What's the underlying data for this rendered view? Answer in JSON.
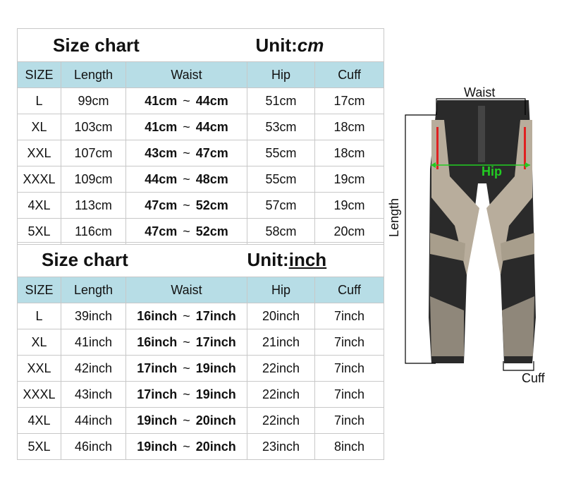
{
  "cm_chart": {
    "title": "Size chart",
    "unit_label": "Unit:",
    "unit": "cm",
    "headers": [
      "SIZE",
      "Length",
      "Waist",
      "Hip",
      "Cuff"
    ],
    "rows": [
      {
        "size": "L",
        "length": "99cm",
        "waist_min": "41cm",
        "waist_max": "44cm",
        "hip": "51cm",
        "cuff": "17cm"
      },
      {
        "size": "XL",
        "length": "103cm",
        "waist_min": "41cm",
        "waist_max": "44cm",
        "hip": "53cm",
        "cuff": "18cm"
      },
      {
        "size": "XXL",
        "length": "107cm",
        "waist_min": "43cm",
        "waist_max": "47cm",
        "hip": "55cm",
        "cuff": "18cm"
      },
      {
        "size": "XXXL",
        "length": "109cm",
        "waist_min": "44cm",
        "waist_max": "48cm",
        "hip": "55cm",
        "cuff": "19cm"
      },
      {
        "size": "4XL",
        "length": "113cm",
        "waist_min": "47cm",
        "waist_max": "52cm",
        "hip": "57cm",
        "cuff": "19cm"
      },
      {
        "size": "5XL",
        "length": "116cm",
        "waist_min": "47cm",
        "waist_max": "52cm",
        "hip": "58cm",
        "cuff": "20cm"
      }
    ]
  },
  "inch_chart": {
    "title": "Size chart",
    "unit_label": "Unit:",
    "unit": "inch",
    "headers": [
      "SIZE",
      "Length",
      "Waist",
      "Hip",
      "Cuff"
    ],
    "rows": [
      {
        "size": "L",
        "length": "39inch",
        "waist_min": "16inch",
        "waist_max": "17inch",
        "hip": "20inch",
        "cuff": "7inch"
      },
      {
        "size": "XL",
        "length": "41inch",
        "waist_min": "16inch",
        "waist_max": "17inch",
        "hip": "21inch",
        "cuff": "7inch"
      },
      {
        "size": "XXL",
        "length": "42inch",
        "waist_min": "17inch",
        "waist_max": "19inch",
        "hip": "22inch",
        "cuff": "7inch"
      },
      {
        "size": "XXXL",
        "length": "43inch",
        "waist_min": "17inch",
        "waist_max": "19inch",
        "hip": "22inch",
        "cuff": "7inch"
      },
      {
        "size": "4XL",
        "length": "44inch",
        "waist_min": "19inch",
        "waist_max": "20inch",
        "hip": "22inch",
        "cuff": "7inch"
      },
      {
        "size": "5XL",
        "length": "46inch",
        "waist_min": "19inch",
        "waist_max": "20inch",
        "hip": "23inch",
        "cuff": "8inch"
      }
    ]
  },
  "tilde": "~",
  "diagram": {
    "waist": "Waist",
    "hip": "Hip",
    "length": "Length",
    "cuff": "Cuff",
    "hip_color": "#22cc22"
  },
  "colors": {
    "header_bg": "#b7dde6"
  }
}
